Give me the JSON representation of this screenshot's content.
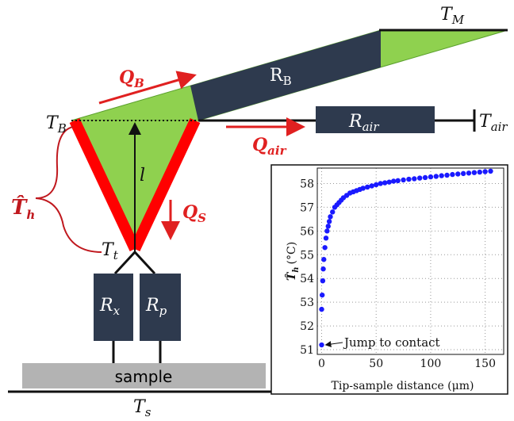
{
  "labels": {
    "t_m": {
      "main": "T",
      "sub": "M"
    },
    "q_b": {
      "main": "Q",
      "sub": "B"
    },
    "r_b": {
      "main": "R",
      "sub": "B"
    },
    "t_b": {
      "main": "T",
      "sub": "B"
    },
    "r_air": {
      "main": "R",
      "sub": "air"
    },
    "t_air": {
      "main": "T",
      "sub": "air"
    },
    "q_air": {
      "main": "Q",
      "sub": "air"
    },
    "l": "l",
    "q_s": {
      "main": "Q",
      "sub": "S"
    },
    "t_h": {
      "main": "T̂",
      "sub": "h"
    },
    "t_t": {
      "main": "T",
      "sub": "t"
    },
    "r_x": {
      "main": "R",
      "sub": "x"
    },
    "r_p": {
      "main": "R",
      "sub": "p"
    },
    "sample": "sample",
    "t_s": {
      "main": "T",
      "sub": "s"
    }
  },
  "chart_data": {
    "type": "scatter",
    "xlabel": "Tip-sample distance (μm)",
    "ylabel": {
      "main": "T̂",
      "sub": "h",
      "unit": "(°C)"
    },
    "annotation": "Jump to contact",
    "xlim": [
      -4,
      167
    ],
    "ylim": [
      50.8,
      58.65
    ],
    "xticks": [
      0,
      50,
      100,
      150
    ],
    "yticks": [
      51,
      52,
      53,
      54,
      55,
      56,
      57,
      58
    ],
    "grid": true,
    "series": [
      {
        "color": "#1a1aff",
        "x": [
          0,
          0,
          0.5,
          1,
          1.5,
          2,
          3,
          4,
          5,
          6,
          7,
          8,
          10,
          12,
          14,
          16,
          18,
          20,
          23,
          26,
          29,
          32,
          35,
          38,
          42,
          46,
          50,
          54,
          58,
          62,
          66,
          70,
          75,
          80,
          85,
          90,
          95,
          100,
          105,
          110,
          115,
          120,
          125,
          130,
          135,
          140,
          145,
          150,
          155
        ],
        "values": [
          51.2,
          52.7,
          53.3,
          53.9,
          54.4,
          54.8,
          55.3,
          55.7,
          56.0,
          56.2,
          56.4,
          56.6,
          56.8,
          57.0,
          57.1,
          57.2,
          57.3,
          57.4,
          57.5,
          57.6,
          57.65,
          57.7,
          57.75,
          57.8,
          57.85,
          57.9,
          57.95,
          58.0,
          58.03,
          58.06,
          58.1,
          58.12,
          58.15,
          58.18,
          58.2,
          58.23,
          58.25,
          58.28,
          58.3,
          58.33,
          58.35,
          58.38,
          58.4,
          58.42,
          58.44,
          58.46,
          58.48,
          58.5,
          58.52
        ]
      }
    ]
  }
}
